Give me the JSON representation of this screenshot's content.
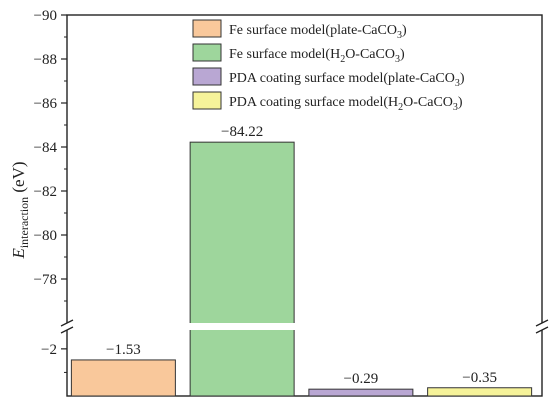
{
  "chart_data": {
    "type": "bar",
    "ylabel": {
      "main": "E",
      "sub": "interaction",
      "unit": " (eV)"
    },
    "y_axis": "inverted, broken",
    "ylim_upper": [
      -76,
      -90
    ],
    "ylim_lower": [
      0,
      -2.8
    ],
    "yticks_upper": [
      -78,
      -80,
      -82,
      -84,
      -86,
      -88,
      -90
    ],
    "yticks_lower": [
      -2
    ],
    "ytick_labels_upper": [
      "−78",
      "−80",
      "−82",
      "−84",
      "−86",
      "−88",
      "−90"
    ],
    "ytick_labels_lower": [
      "−2"
    ],
    "categories": [
      "Fe surface model(plate-CaCO3)",
      "Fe surface model(H2O-CaCO3)",
      "PDA coating surface model(plate-CaCO3)",
      "PDA coating surface model(H2O-CaCO3)"
    ],
    "values": [
      -1.53,
      -84.22,
      -0.29,
      -0.35
    ],
    "value_labels": [
      "−1.53",
      "−84.22",
      "−0.29",
      "−0.35"
    ],
    "colors": [
      "#f9c89b",
      "#9ed69c",
      "#b9a7d3",
      "#f6f39a"
    ],
    "legend": {
      "placement": "top-right",
      "entries": [
        {
          "label": "Fe surface model(plate-CaCO",
          "sub": "3",
          "tail": ")"
        },
        {
          "label": "Fe surface model(H",
          "sub": "2",
          "mid": "O-CaCO",
          "sub2": "3",
          "tail": ")"
        },
        {
          "label": "PDA coating surface model(plate-CaCO",
          "sub": "3",
          "tail": ")"
        },
        {
          "label": "PDA coating surface model(H",
          "sub": "2",
          "mid": "O-CaCO",
          "sub2": "3",
          "tail": ")"
        }
      ]
    }
  }
}
